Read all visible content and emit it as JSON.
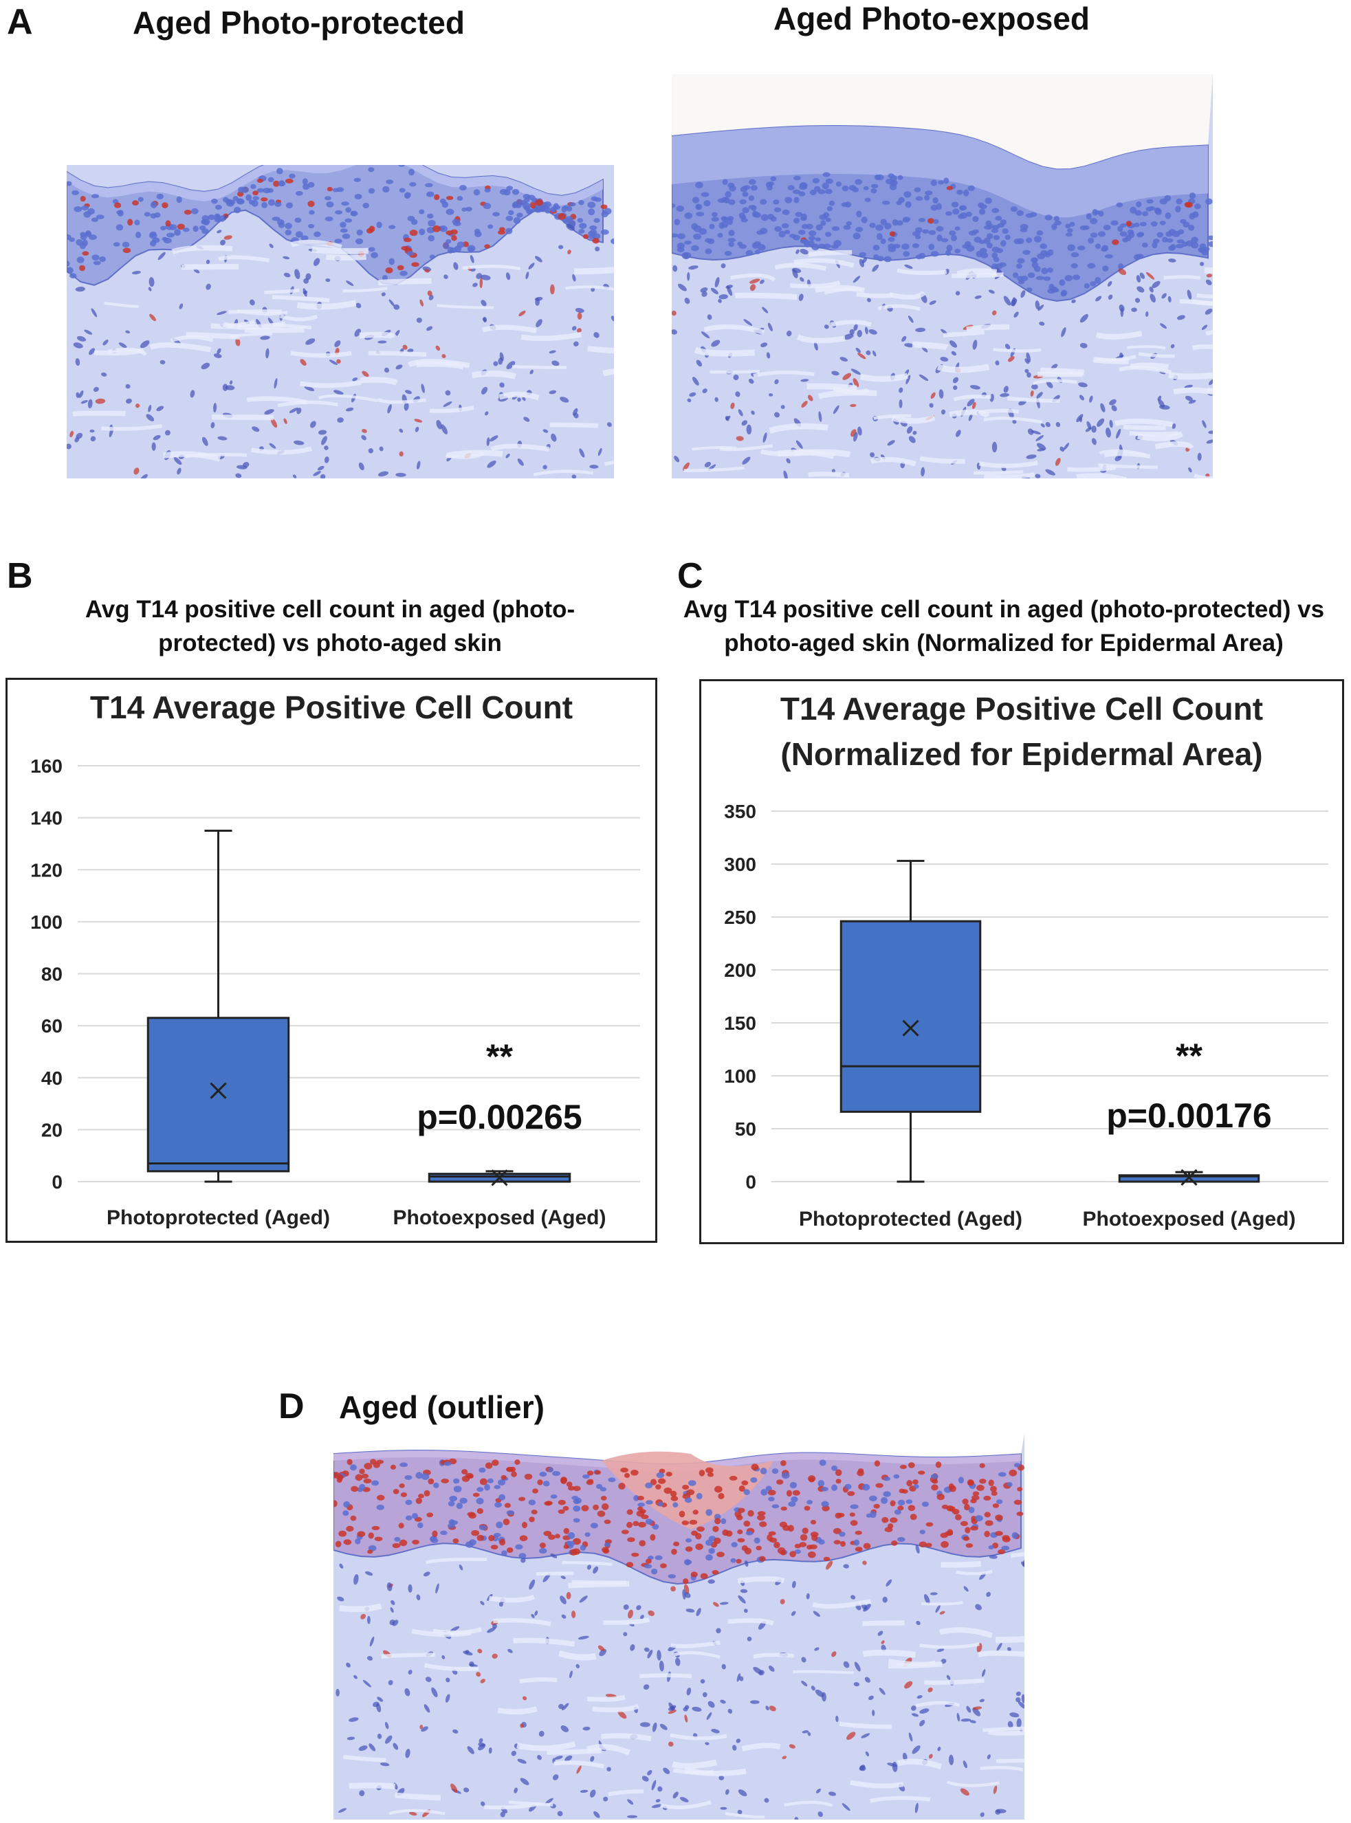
{
  "panels": {
    "a": {
      "letter": "A",
      "left_title": "Aged Photo-protected",
      "right_title": "Aged Photo-exposed"
    },
    "b": {
      "letter": "B",
      "subtitle_line1": "Avg T14 positive cell count in aged (photo-",
      "subtitle_line2": "protected) vs photo-aged skin"
    },
    "c": {
      "letter": "C",
      "subtitle_line1": "Avg T14 positive cell count in aged (photo-protected) vs",
      "subtitle_line2": "photo-aged skin (Normalized for Epidermal Area)"
    },
    "d": {
      "letter": "D",
      "title": "Aged (outlier)"
    }
  },
  "colors": {
    "box_fill": "#4472C4",
    "box_stroke": "#2F528F",
    "gridline": "#d9d9d9",
    "hematoxylin": "#5b6fd0",
    "chromogen_red": "#c8352c",
    "tissue_bg": "#cdd5f2"
  },
  "chart_data": [
    {
      "type": "box",
      "title": "T14 Average Positive Cell Count",
      "categories": [
        "Photoprotected (Aged)",
        "Photoexposed (Aged)"
      ],
      "ylim": [
        0,
        160
      ],
      "yticks": [
        0,
        20,
        40,
        60,
        80,
        100,
        120,
        140,
        160
      ],
      "grid": true,
      "boxes": [
        {
          "min": 0,
          "q1": 4,
          "median": 7,
          "q3": 63,
          "max": 135,
          "mean": 35
        },
        {
          "min": 0,
          "q1": 0,
          "median": 2,
          "q3": 3,
          "max": 4,
          "mean": 1.5
        }
      ],
      "annotations": [
        "**",
        "p=0.00265"
      ]
    },
    {
      "type": "box",
      "title": "T14 Average Positive Cell Count (Normalized for Epidermal Area)",
      "title_lines": [
        "T14 Average Positive Cell Count",
        "(Normalized for Epidermal Area)"
      ],
      "categories": [
        "Photoprotected (Aged)",
        "Photoexposed (Aged)"
      ],
      "ylim": [
        0,
        350
      ],
      "yticks": [
        0,
        50,
        100,
        150,
        200,
        250,
        300,
        350
      ],
      "grid": true,
      "boxes": [
        {
          "min": 0,
          "q1": 66,
          "median": 109,
          "q3": 246,
          "max": 303,
          "mean": 145
        },
        {
          "min": 0,
          "q1": 0,
          "median": 5,
          "q3": 6,
          "max": 9,
          "mean": 4
        }
      ],
      "annotations": [
        "**",
        "p=0.00176"
      ]
    }
  ]
}
